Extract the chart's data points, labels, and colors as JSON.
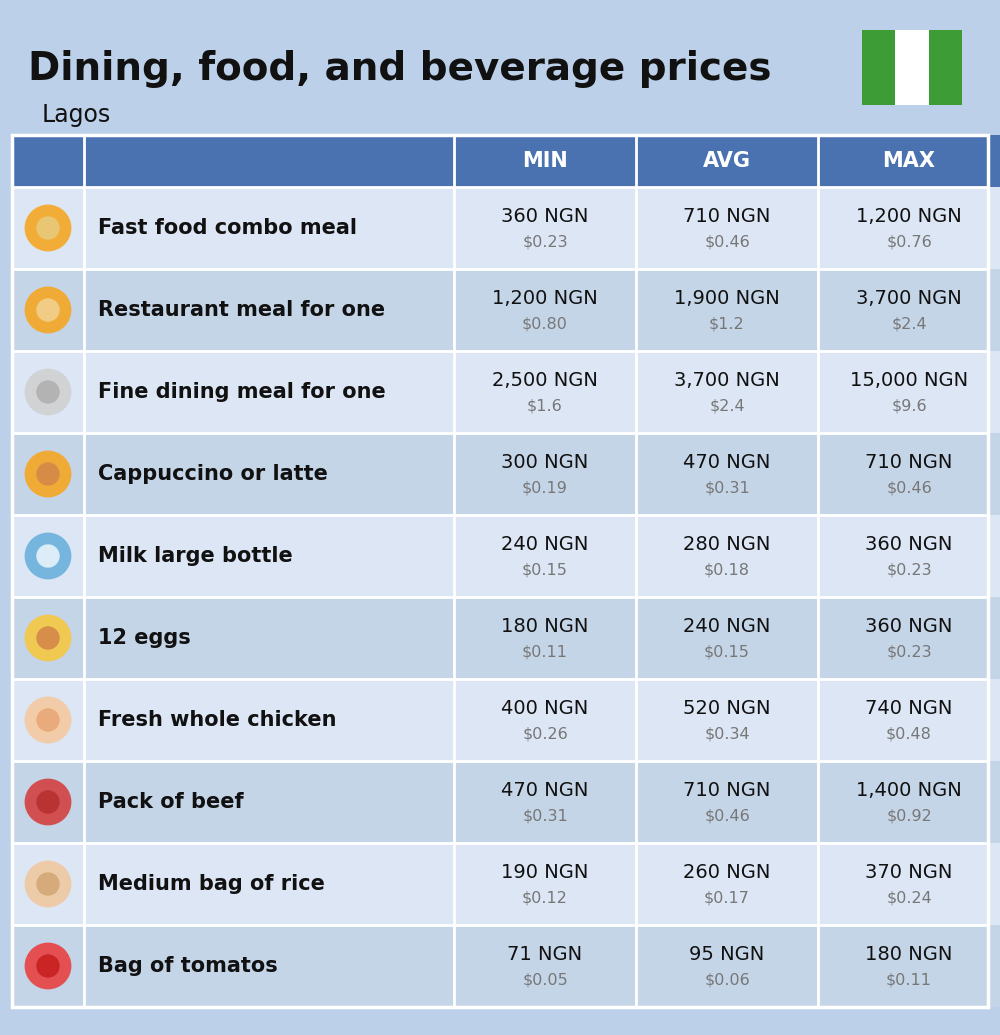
{
  "title": "Dining, food, and beverage prices",
  "subtitle": "Lagos",
  "header_bg": "#4a72b0",
  "header_text_color": "#ffffff",
  "row_bg_light": "#dce6f5",
  "row_bg_dark": "#c5d5e8",
  "top_bg": "#bdd0e9",
  "label_color": "#111111",
  "value_color": "#111111",
  "subvalue_color": "#777777",
  "col_headers": [
    "MIN",
    "AVG",
    "MAX"
  ],
  "rows": [
    {
      "label": "Fast food combo meal",
      "min_ngn": "360 NGN",
      "min_usd": "$0.23",
      "avg_ngn": "710 NGN",
      "avg_usd": "$0.46",
      "max_ngn": "1,200 NGN",
      "max_usd": "$0.76"
    },
    {
      "label": "Restaurant meal for one",
      "min_ngn": "1,200 NGN",
      "min_usd": "$0.80",
      "avg_ngn": "1,900 NGN",
      "avg_usd": "$1.2",
      "max_ngn": "3,700 NGN",
      "max_usd": "$2.4"
    },
    {
      "label": "Fine dining meal for one",
      "min_ngn": "2,500 NGN",
      "min_usd": "$1.6",
      "avg_ngn": "3,700 NGN",
      "avg_usd": "$2.4",
      "max_ngn": "15,000 NGN",
      "max_usd": "$9.6"
    },
    {
      "label": "Cappuccino or latte",
      "min_ngn": "300 NGN",
      "min_usd": "$0.19",
      "avg_ngn": "470 NGN",
      "avg_usd": "$0.31",
      "max_ngn": "710 NGN",
      "max_usd": "$0.46"
    },
    {
      "label": "Milk large bottle",
      "min_ngn": "240 NGN",
      "min_usd": "$0.15",
      "avg_ngn": "280 NGN",
      "avg_usd": "$0.18",
      "max_ngn": "360 NGN",
      "max_usd": "$0.23"
    },
    {
      "label": "12 eggs",
      "min_ngn": "180 NGN",
      "min_usd": "$0.11",
      "avg_ngn": "240 NGN",
      "avg_usd": "$0.15",
      "max_ngn": "360 NGN",
      "max_usd": "$0.23"
    },
    {
      "label": "Fresh whole chicken",
      "min_ngn": "400 NGN",
      "min_usd": "$0.26",
      "avg_ngn": "520 NGN",
      "avg_usd": "$0.34",
      "max_ngn": "740 NGN",
      "max_usd": "$0.48"
    },
    {
      "label": "Pack of beef",
      "min_ngn": "470 NGN",
      "min_usd": "$0.31",
      "avg_ngn": "710 NGN",
      "avg_usd": "$0.46",
      "max_ngn": "1,400 NGN",
      "max_usd": "$0.92"
    },
    {
      "label": "Medium bag of rice",
      "min_ngn": "190 NGN",
      "min_usd": "$0.12",
      "avg_ngn": "260 NGN",
      "avg_usd": "$0.17",
      "max_ngn": "370 NGN",
      "max_usd": "$0.24"
    },
    {
      "label": "Bag of tomatos",
      "min_ngn": "71 NGN",
      "min_usd": "$0.05",
      "avg_ngn": "95 NGN",
      "avg_usd": "$0.06",
      "max_ngn": "180 NGN",
      "max_usd": "$0.11"
    }
  ],
  "flag_green": "#3d9c35",
  "flag_white": "#ffffff",
  "icon_colors": [
    [
      "#f5a623",
      "#e8c97a"
    ],
    [
      "#f5a623",
      "#f0d090"
    ],
    [
      "#d0d0d0",
      "#b0b0b0"
    ],
    [
      "#f5a623",
      "#d4884a"
    ],
    [
      "#6ab0dc",
      "#e8f4fb"
    ],
    [
      "#f5c842",
      "#d4884a"
    ],
    [
      "#f5c8a0",
      "#e8a878"
    ],
    [
      "#d44040",
      "#b83030"
    ],
    [
      "#f0c8a0",
      "#d4a878"
    ],
    [
      "#e84040",
      "#c82020"
    ]
  ]
}
